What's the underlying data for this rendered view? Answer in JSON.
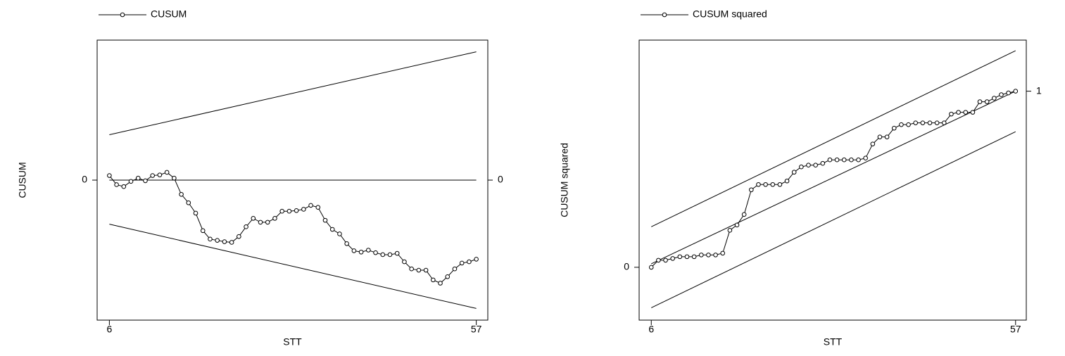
{
  "chart_data": [
    {
      "type": "line",
      "xlabel": "STT",
      "ylabel": "CUSUM",
      "xlim": [
        4.3,
        58.6
      ],
      "xticks": [
        6,
        57
      ],
      "ylim": [
        -21.6,
        21.6
      ],
      "yticks": [
        0
      ],
      "y2lim": [
        -21.6,
        21.6
      ],
      "y2ticks": [
        0
      ],
      "x": [
        6,
        7,
        8,
        9,
        10,
        11,
        12,
        13,
        14,
        15,
        16,
        17,
        18,
        19,
        20,
        21,
        22,
        23,
        24,
        25,
        26,
        27,
        28,
        29,
        30,
        31,
        32,
        33,
        34,
        35,
        36,
        37,
        38,
        39,
        40,
        41,
        42,
        43,
        44,
        45,
        46,
        47,
        48,
        49,
        50,
        51,
        52,
        53,
        54,
        55,
        56,
        57
      ],
      "series": [
        {
          "name": "CUSUM",
          "color": "#000000",
          "marker": "circle",
          "values": [
            0.7,
            -0.7,
            -1.0,
            -0.2,
            0.3,
            -0.1,
            0.7,
            0.8,
            1.2,
            0.3,
            -2.2,
            -3.5,
            -5.1,
            -7.8,
            -9.1,
            -9.3,
            -9.5,
            -9.6,
            -8.7,
            -7.2,
            -5.9,
            -6.5,
            -6.5,
            -5.9,
            -4.8,
            -4.8,
            -4.7,
            -4.5,
            -3.9,
            -4.2,
            -6.2,
            -7.6,
            -8.3,
            -9.8,
            -10.9,
            -11.1,
            -10.8,
            -11.2,
            -11.5,
            -11.5,
            -11.3,
            -12.6,
            -13.7,
            -13.9,
            -13.9,
            -15.4,
            -15.9,
            -14.9,
            -13.7,
            -12.8,
            -12.6,
            -12.2
          ]
        }
      ],
      "lines": [
        {
          "x": [
            6,
            57
          ],
          "values": [
            7.0,
            19.8
          ]
        },
        {
          "x": [
            6,
            57
          ],
          "values": [
            0,
            0
          ]
        },
        {
          "x": [
            6,
            57
          ],
          "values": [
            -6.8,
            -19.8
          ]
        }
      ]
    },
    {
      "type": "line",
      "xlabel": "STT",
      "ylabel": "CUSUM squared",
      "xlim": [
        4.3,
        58.5
      ],
      "xticks": [
        6,
        57
      ],
      "ylim": [
        -0.3,
        1.29
      ],
      "yticks": [
        0
      ],
      "y2lim": [
        -0.3,
        1.29
      ],
      "y2ticks": [
        1
      ],
      "x": [
        6,
        7,
        8,
        9,
        10,
        11,
        12,
        13,
        14,
        15,
        16,
        17,
        18,
        19,
        20,
        21,
        22,
        23,
        24,
        25,
        26,
        27,
        28,
        29,
        30,
        31,
        32,
        33,
        34,
        35,
        36,
        37,
        38,
        39,
        40,
        41,
        42,
        43,
        44,
        45,
        46,
        47,
        48,
        49,
        50,
        51,
        52,
        53,
        54,
        55,
        56,
        57
      ],
      "series": [
        {
          "name": "CUSUM squared",
          "color": "#000000",
          "marker": "circle",
          "values": [
            0.0,
            0.04,
            0.04,
            0.05,
            0.06,
            0.06,
            0.06,
            0.07,
            0.07,
            0.07,
            0.08,
            0.21,
            0.24,
            0.3,
            0.44,
            0.47,
            0.47,
            0.47,
            0.47,
            0.49,
            0.54,
            0.57,
            0.58,
            0.58,
            0.59,
            0.61,
            0.61,
            0.61,
            0.61,
            0.61,
            0.62,
            0.7,
            0.74,
            0.74,
            0.79,
            0.81,
            0.81,
            0.82,
            0.82,
            0.82,
            0.82,
            0.82,
            0.87,
            0.88,
            0.88,
            0.88,
            0.94,
            0.94,
            0.96,
            0.98,
            0.99,
            1.0
          ]
        }
      ],
      "lines": [
        {
          "x": [
            6,
            57
          ],
          "values": [
            0.23,
            1.23
          ]
        },
        {
          "x": [
            6,
            57
          ],
          "values": [
            0.02,
            1.0
          ]
        },
        {
          "x": [
            6,
            57
          ],
          "values": [
            -0.23,
            0.77
          ]
        }
      ]
    }
  ]
}
